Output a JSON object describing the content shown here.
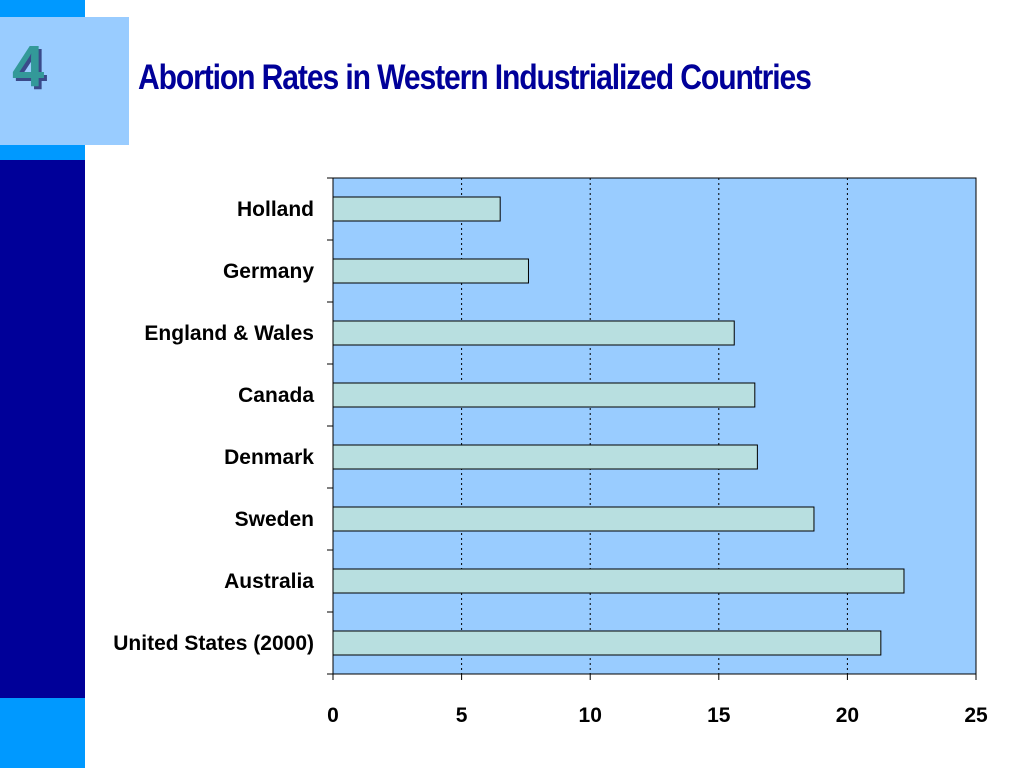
{
  "slide": {
    "number": "4",
    "title": "Abortion Rates in Western Industrialized Countries"
  },
  "colors": {
    "plot_background": "#99ccff",
    "bar_fill": "#b8dfe0",
    "sidebar_dark": "#000099",
    "sidebar_light": "#0099ff",
    "title_color": "#000099"
  },
  "chart_data": {
    "type": "bar",
    "orientation": "horizontal",
    "categories": [
      "Holland",
      "Germany",
      "England & Wales",
      "Canada",
      "Denmark",
      "Sweden",
      "Australia",
      "United States (2000)"
    ],
    "values": [
      6.5,
      7.6,
      15.6,
      16.4,
      16.5,
      18.7,
      22.2,
      21.3
    ],
    "title": "",
    "xlabel": "",
    "ylabel": "",
    "xlim": [
      0,
      25
    ],
    "xticks": [
      "0",
      "5",
      "10",
      "15",
      "20",
      "25"
    ],
    "grid": "vertical dotted",
    "legend": "none"
  }
}
